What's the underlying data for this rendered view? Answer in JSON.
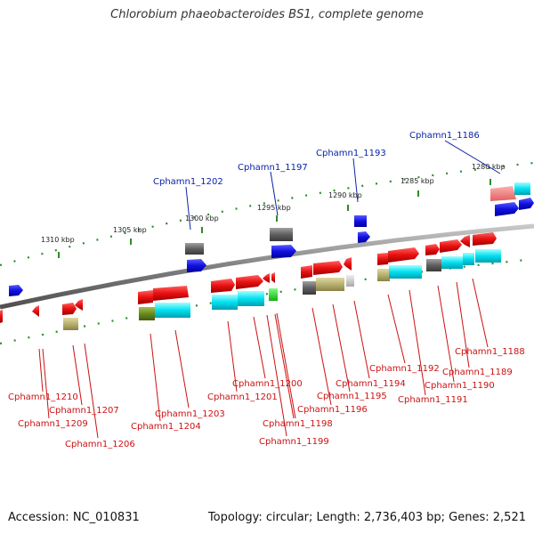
{
  "title": "Chlorobium phaeobacteroides BS1, complete genome",
  "footer": {
    "accession": "Accession: NC_010831",
    "topology": "Topology: circular; Length: 2,736,403 bp; Genes: 2,521"
  },
  "scale_labels": [
    "1310 kbp",
    "1305 kbp",
    "1300 kbp",
    "1295 kbp",
    "1290 kbp",
    "1285 kbp",
    "1280 kbp"
  ],
  "top_gene_labels": [
    "Cphamn1_1202",
    "Cphamn1_1197",
    "Cphamn1_1193",
    "Cphamn1_1186"
  ],
  "bottom_gene_labels": [
    "Cphamn1_1210",
    "Cphamn1_1209",
    "Cphamn1_1207",
    "Cphamn1_1206",
    "Cphamn1_1204",
    "Cphamn1_1203",
    "Cphamn1_1201",
    "Cphamn1_1200",
    "Cphamn1_1199",
    "Cphamn1_1198",
    "Cphamn1_1196",
    "Cphamn1_1195",
    "Cphamn1_1194",
    "Cphamn1_1192",
    "Cphamn1_1191",
    "Cphamn1_1190",
    "Cphamn1_1189",
    "Cphamn1_1188"
  ],
  "colors": {
    "forward_gene": "#e81010",
    "reverse_gene": "#1010e0",
    "backbone": "#808080",
    "scale_tick": "#2e8b2e",
    "top_label": "#0a22a8",
    "bottom_label": "#cc1111",
    "cyan_feature": "#00e0f0",
    "olive_feature": "#b8b070",
    "gray_feature": "#606060",
    "green_feature": "#6a8a20"
  }
}
